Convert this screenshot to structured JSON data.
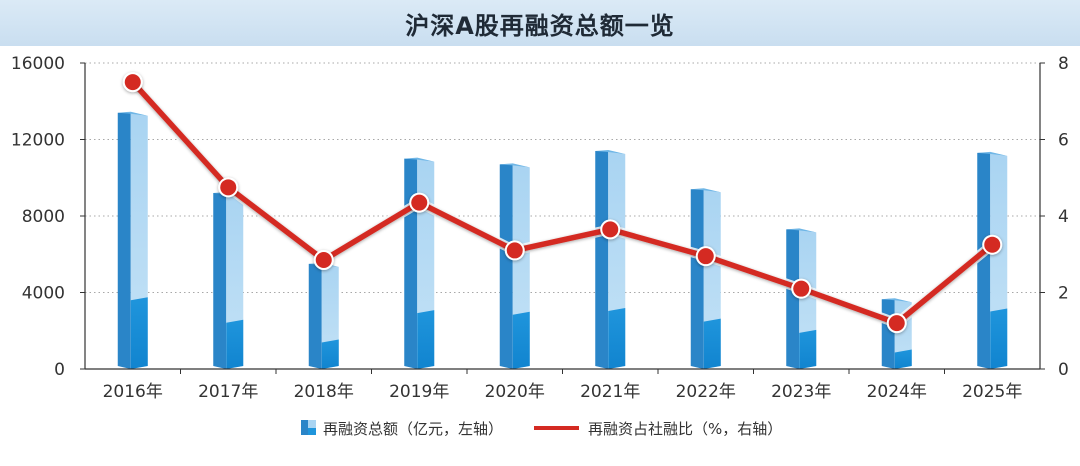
{
  "chart_data": {
    "type": "bar",
    "title": "沪深A股再融资总额一览",
    "categories": [
      "2016年",
      "2017年",
      "2018年",
      "2019年",
      "2020年",
      "2021年",
      "2022年",
      "2023年",
      "2024年",
      "2025年"
    ],
    "series": [
      {
        "name": "再融资总额（亿元，左轴）",
        "type": "bar",
        "axis": "left",
        "values": [
          13400,
          9200,
          5500,
          11000,
          10700,
          11400,
          9400,
          7300,
          3650,
          11300
        ],
        "color": "#2a85c8"
      },
      {
        "name": "再融资占社融比（%，右轴）",
        "type": "line",
        "axis": "right",
        "values": [
          7.5,
          4.75,
          2.85,
          4.35,
          3.1,
          3.65,
          2.95,
          2.1,
          1.2,
          3.25
        ],
        "color": "#d42a22"
      }
    ],
    "y_left": {
      "ticks": [
        "0",
        "4000",
        "8000",
        "12000",
        "16000"
      ],
      "ylim": [
        0,
        16000
      ]
    },
    "y_right": {
      "ticks": [
        "0",
        "2",
        "4",
        "6",
        "8"
      ],
      "ylim": [
        0,
        8
      ]
    },
    "grid": "horizontal-dotted",
    "legend_position": "bottom"
  }
}
